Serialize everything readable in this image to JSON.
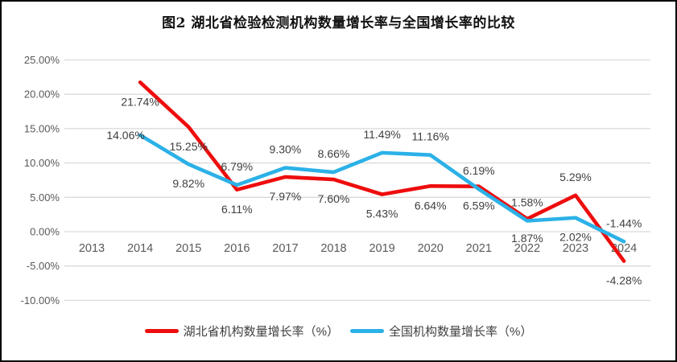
{
  "chart_data": {
    "type": "line",
    "title": "图2  湖北省检验检测机构数量增长率与全国增长率的比较",
    "categories": [
      "2013",
      "2014",
      "2015",
      "2016",
      "2017",
      "2018",
      "2019",
      "2020",
      "2021",
      "2022",
      "2023",
      "2024"
    ],
    "series": [
      {
        "name": "湖北省机构数量增长率（%）",
        "color": "#ee0d0d",
        "values": [
          null,
          21.74,
          15.25,
          6.11,
          7.97,
          7.6,
          5.43,
          6.64,
          6.59,
          1.87,
          5.29,
          -4.28
        ],
        "labels": [
          "",
          "21.74%",
          "15.25%",
          "6.11%",
          "7.97%",
          "7.60%",
          "5.43%",
          "6.64%",
          "6.59%",
          "1.87%",
          "5.29%",
          "-4.28%"
        ],
        "label_pos": [
          "",
          "below",
          "below",
          "below",
          "below",
          "below",
          "below",
          "below",
          "below",
          "below",
          "above",
          "below"
        ]
      },
      {
        "name": "全国机构数量增长率（%）",
        "color": "#2bb1e7",
        "values": [
          null,
          14.06,
          9.82,
          6.79,
          9.3,
          8.66,
          11.49,
          11.16,
          6.19,
          1.58,
          2.02,
          -1.44
        ],
        "labels": [
          "",
          "14.06%",
          "9.82%",
          "6.79%",
          "9.30%",
          "8.66%",
          "11.49%",
          "11.16%",
          "6.19%",
          "1.58%",
          "2.02%",
          "-1.44%"
        ],
        "label_pos": [
          "",
          "left",
          "below",
          "above",
          "above",
          "above",
          "above",
          "above",
          "above",
          "above",
          "below",
          "above"
        ]
      }
    ],
    "ylim": [
      -10,
      25
    ],
    "ytick_step": 5,
    "ytick_labels": [
      "25.00%",
      "20.00%",
      "15.00%",
      "10.00%",
      "5.00%",
      "0.00%",
      "-5.00%",
      "-10.00%"
    ],
    "ytick_values": [
      25,
      20,
      15,
      10,
      5,
      0,
      -5,
      -10
    ],
    "grid": true,
    "legend_position": "bottom",
    "axis_label_color": "#595959",
    "data_label_color": "#3f3f3f",
    "grid_color": "#d9d9d9"
  }
}
